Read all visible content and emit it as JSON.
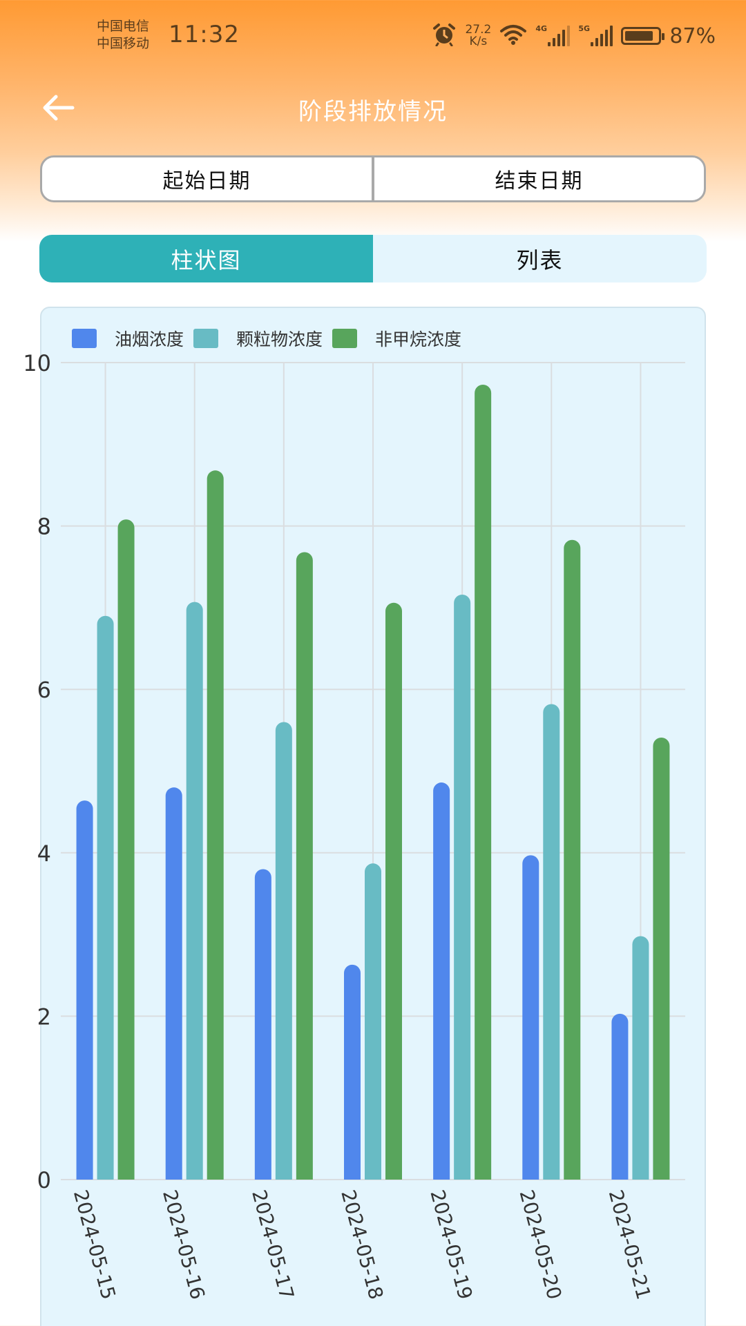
{
  "status_bar": {
    "carrier_1": "中国电信",
    "carrier_2": "中国移动",
    "time": "11:32",
    "net_speed_value": "27.2",
    "net_speed_unit": "K/s",
    "signal_1_tag": "4G",
    "signal_2_tag": "5G",
    "battery_percent": "87%",
    "icons": [
      "alarm-icon",
      "wifi-icon",
      "signal-4g-icon",
      "signal-5g-icon",
      "battery-icon"
    ]
  },
  "nav": {
    "back_icon": "arrow-left-icon",
    "title": "阶段排放情况"
  },
  "date_range": {
    "start_label": "起始日期",
    "end_label": "结束日期"
  },
  "tabs": [
    {
      "label": "柱状图",
      "active": true
    },
    {
      "label": "列表",
      "active": false
    }
  ],
  "colors": {
    "header_gradient_top": "#FF9A33",
    "tab_active": "#2EB1B7",
    "card_bg": "#E4F5FD",
    "series_1": "#5087EC",
    "series_2": "#68BBC4",
    "series_3": "#58A55C"
  },
  "chart_data": {
    "type": "bar",
    "title": "",
    "xlabel": "",
    "ylabel": "",
    "categories": [
      "2024-05-15",
      "2024-05-16",
      "2024-05-17",
      "2024-05-18",
      "2024-05-19",
      "2024-05-20",
      "2024-05-21"
    ],
    "series": [
      {
        "name": "油烟浓度",
        "color": "#5087EC",
        "values": [
          4.64,
          4.8,
          3.8,
          2.63,
          4.86,
          3.97,
          2.03
        ]
      },
      {
        "name": "颗粒物浓度",
        "color": "#68BBC4",
        "values": [
          6.9,
          7.07,
          5.6,
          3.87,
          7.16,
          5.82,
          2.98
        ]
      },
      {
        "name": "非甲烷浓度",
        "color": "#58A55C",
        "values": [
          8.08,
          8.68,
          7.68,
          7.06,
          9.73,
          7.83,
          5.41
        ]
      }
    ],
    "ylim": [
      0,
      10
    ],
    "yticks": [
      0,
      2,
      4,
      6,
      8,
      10
    ],
    "grid": true,
    "legend_position": "top-left",
    "x_label_rotation": 75
  }
}
